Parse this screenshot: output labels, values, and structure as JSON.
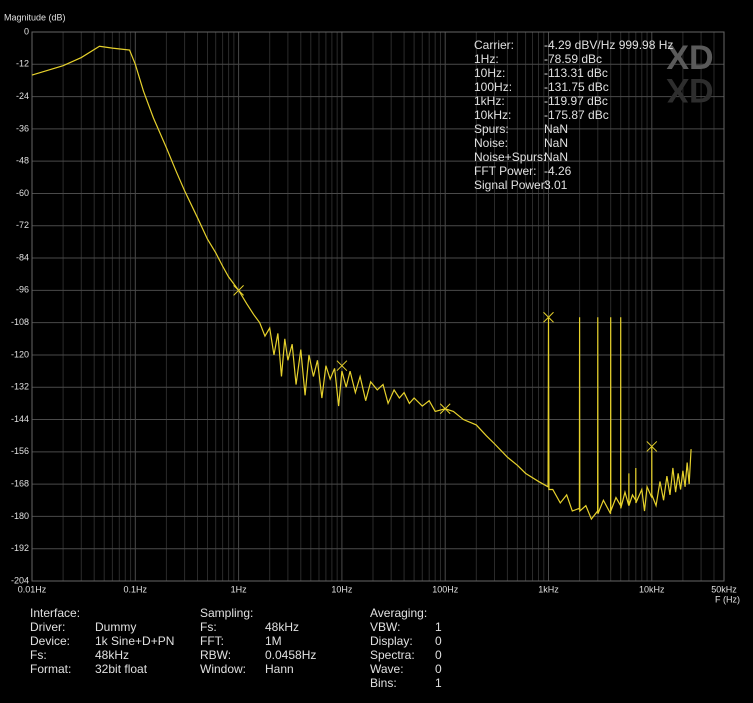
{
  "chart_data": {
    "type": "line",
    "y_label": "Magnitude (dB)",
    "x_label": "F (Hz)",
    "logo": "XD",
    "xscale": "log",
    "grid": true,
    "xlim": [
      0.01,
      50000
    ],
    "ylim": [
      -204,
      0
    ],
    "xticks": [
      {
        "value": 0.01,
        "label": "0.01Hz"
      },
      {
        "value": 0.1,
        "label": "0.1Hz"
      },
      {
        "value": 1,
        "label": "1Hz"
      },
      {
        "value": 10,
        "label": "10Hz"
      },
      {
        "value": 100,
        "label": "100Hz"
      },
      {
        "value": 1000,
        "label": "1kHz"
      },
      {
        "value": 10000,
        "label": "10kHz"
      },
      {
        "value": 50000,
        "label": "50kHz"
      }
    ],
    "yticks": [
      0,
      -12,
      -24,
      -36,
      -48,
      -60,
      -72,
      -84,
      -96,
      -108,
      -120,
      -132,
      -144,
      -156,
      -168,
      -180,
      -192,
      -204
    ],
    "series": [
      {
        "color": "#e6d12c",
        "x": [
          0.01,
          0.02,
          0.03,
          0.045,
          0.06,
          0.088,
          0.1,
          0.12,
          0.15,
          0.2,
          0.25,
          0.3,
          0.4,
          0.5,
          0.6,
          0.7,
          0.8,
          1,
          1.2,
          1.4,
          1.6,
          1.8,
          2,
          2.2,
          2.4,
          2.6,
          2.8,
          3,
          3.3,
          3.6,
          4,
          4.4,
          4.8,
          5.3,
          5.8,
          6.4,
          7,
          7.7,
          8.5,
          9.3,
          10,
          11,
          12,
          13.5,
          15,
          17,
          19,
          22,
          25,
          28,
          32,
          36,
          40,
          45,
          50,
          60,
          70,
          80,
          100,
          120,
          150,
          200,
          250,
          300,
          400,
          500,
          600,
          800,
          990,
          1000,
          1010,
          1100,
          1300,
          1500,
          1700,
          1990,
          2000,
          2010,
          2300,
          2600,
          2990,
          3000,
          3010,
          3400,
          3990,
          4000,
          4010,
          4500,
          4990,
          5000,
          5010,
          5500,
          5990,
          6000,
          6010,
          6500,
          6990,
          7000,
          7010,
          8000,
          8500,
          9000,
          9990,
          10000,
          10010,
          11000,
          12000,
          13000,
          14000,
          15000,
          16000,
          17000,
          18000,
          19000,
          20000,
          21000,
          22000,
          23000,
          24000
        ],
        "values": [
          -16,
          -12.5,
          -9.5,
          -5.3,
          -6,
          -6.7,
          -12,
          -22,
          -32,
          -43,
          -52,
          -59,
          -69,
          -77,
          -82,
          -87,
          -91,
          -96,
          -101,
          -105,
          -108,
          -113,
          -110,
          -120,
          -112,
          -128,
          -114,
          -122,
          -116,
          -131,
          -118,
          -135,
          -120,
          -128,
          -122,
          -136,
          -124,
          -129,
          -125,
          -139,
          -126,
          -132,
          -126,
          -134,
          -128,
          -137,
          -130,
          -133,
          -131,
          -138,
          -133,
          -136,
          -134,
          -138,
          -136,
          -139,
          -137,
          -141,
          -140,
          -141,
          -144,
          -146,
          -150,
          -153,
          -158,
          -161,
          -164,
          -167,
          -169,
          -106,
          -170,
          -170,
          -175,
          -172,
          -178,
          -177,
          -106,
          -178,
          -176,
          -181,
          -178,
          -106,
          -179,
          -174,
          -179,
          -106,
          -178,
          -173,
          -176,
          -106,
          -177,
          -171,
          -176,
          -164,
          -176,
          -172,
          -174,
          -162,
          -175,
          -170,
          -178,
          -169,
          -173,
          -154,
          -172,
          -176,
          -167,
          -174,
          -165,
          -172,
          -162,
          -171,
          -164,
          -170,
          -163,
          -169,
          -160,
          -168,
          -155
        ]
      }
    ],
    "markers": {
      "x": [
        1,
        10,
        100,
        1000,
        10000
      ],
      "values": [
        -96,
        -124,
        -140,
        -106,
        -154
      ]
    }
  },
  "readout": [
    [
      "Carrier:",
      "-4.29 dBV/Hz 999.98 Hz"
    ],
    [
      "1Hz:",
      "-78.59 dBc"
    ],
    [
      "10Hz:",
      "-113.31 dBc"
    ],
    [
      "100Hz:",
      "-131.75 dBc"
    ],
    [
      "1kHz:",
      "-119.97 dBc"
    ],
    [
      "10kHz:",
      "-175.87 dBc"
    ],
    [
      "Spurs:",
      "NaN"
    ],
    [
      "Noise:",
      "NaN"
    ],
    [
      "Noise+Spurs:",
      "NaN"
    ],
    [
      "FFT Power:",
      "-4.26"
    ],
    [
      "Signal Power:",
      "3.01"
    ]
  ],
  "info": [
    {
      "title": "Interface:",
      "rows": [
        [
          "Driver:",
          "Dummy"
        ],
        [
          "Device:",
          "1k Sine+D+PN"
        ],
        [
          "Fs:",
          "48kHz"
        ],
        [
          "Format:",
          "32bit float"
        ]
      ]
    },
    {
      "title": "Sampling:",
      "rows": [
        [
          "Fs:",
          "48kHz"
        ],
        [
          "FFT:",
          "1M"
        ],
        [
          "RBW:",
          "0.0458Hz"
        ],
        [
          "Window:",
          "Hann"
        ]
      ]
    },
    {
      "title": "Averaging:",
      "rows": [
        [
          "VBW:",
          "1"
        ],
        [
          "Display:",
          "0"
        ],
        [
          "Spectra:",
          "0"
        ],
        [
          "Wave:",
          "0"
        ],
        [
          "Bins:",
          "1"
        ]
      ]
    }
  ]
}
